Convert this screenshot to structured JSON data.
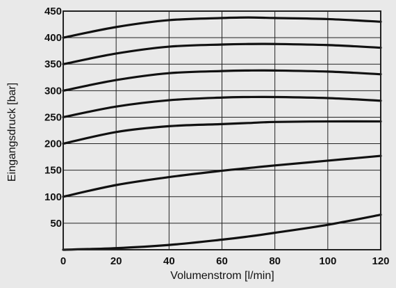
{
  "chart_data": {
    "type": "line",
    "title": "",
    "xlabel": "Volumenstrom [l/min]",
    "ylabel": "Eingangsdruck [bar]",
    "xlim": [
      0,
      120
    ],
    "ylim": [
      0,
      450
    ],
    "xticks": [
      0,
      20,
      40,
      60,
      80,
      100,
      120
    ],
    "yticks": [
      50,
      100,
      150,
      200,
      250,
      300,
      350,
      400,
      450
    ],
    "x": [
      0,
      20,
      40,
      60,
      70,
      80,
      100,
      120
    ],
    "grid": true,
    "legend": "none",
    "series": [
      {
        "values": [
          400,
          420,
          433,
          437,
          438,
          437,
          435,
          430
        ]
      },
      {
        "values": [
          350,
          370,
          383,
          387,
          388,
          388,
          386,
          381
        ]
      },
      {
        "values": [
          300,
          320,
          333,
          337,
          338,
          338,
          336,
          331
        ]
      },
      {
        "values": [
          250,
          270,
          282,
          287,
          288,
          288,
          286,
          281
        ]
      },
      {
        "values": [
          200,
          222,
          233,
          237,
          239,
          241,
          242,
          242
        ]
      },
      {
        "values": [
          100,
          122,
          137,
          149,
          154,
          159,
          168,
          177
        ]
      },
      {
        "values": [
          0,
          3,
          9,
          19,
          25,
          32,
          47,
          66
        ]
      }
    ],
    "colors": {
      "background": "#e9e9e9",
      "line": "#111111",
      "grid": "#222222",
      "text": "#111111"
    }
  }
}
